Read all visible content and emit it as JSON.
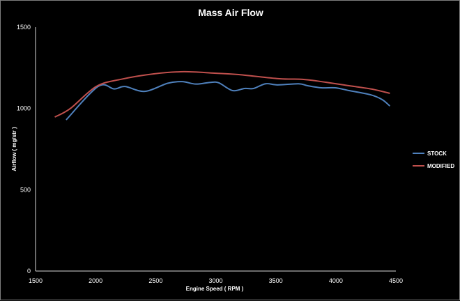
{
  "chart_data": {
    "type": "line",
    "title": "Mass Air Flow",
    "xlabel": "Engine Speed ( RPM )",
    "ylabel": "Airflow ( mg/str )",
    "xlim": [
      1500,
      4500
    ],
    "ylim": [
      0,
      1500
    ],
    "xticks": [
      1500,
      2000,
      2500,
      3000,
      3500,
      4000,
      4500
    ],
    "yticks": [
      0,
      500,
      1000,
      1500
    ],
    "grid": false,
    "legend_position": "right",
    "series": [
      {
        "name": "STOCK",
        "color": "#4f81bd",
        "x": [
          1755,
          2020,
          2155,
          2245,
          2410,
          2600,
          2720,
          2835,
          2950,
          3025,
          3140,
          3240,
          3315,
          3415,
          3515,
          3690,
          3765,
          3880,
          3995,
          4110,
          4285,
          4385,
          4450
        ],
        "y": [
          930,
          1135,
          1120,
          1135,
          1105,
          1155,
          1165,
          1150,
          1160,
          1158,
          1110,
          1123,
          1123,
          1152,
          1145,
          1152,
          1140,
          1127,
          1127,
          1110,
          1085,
          1055,
          1015
        ]
      },
      {
        "name": "MODIFIED",
        "color": "#c0504d",
        "x": [
          1660,
          1790,
          2005,
          2215,
          2485,
          2735,
          2990,
          3180,
          3530,
          3725,
          3920,
          4110,
          4300,
          4450
        ],
        "y": [
          947,
          1000,
          1135,
          1180,
          1213,
          1226,
          1217,
          1209,
          1183,
          1179,
          1161,
          1140,
          1119,
          1093
        ]
      }
    ]
  }
}
